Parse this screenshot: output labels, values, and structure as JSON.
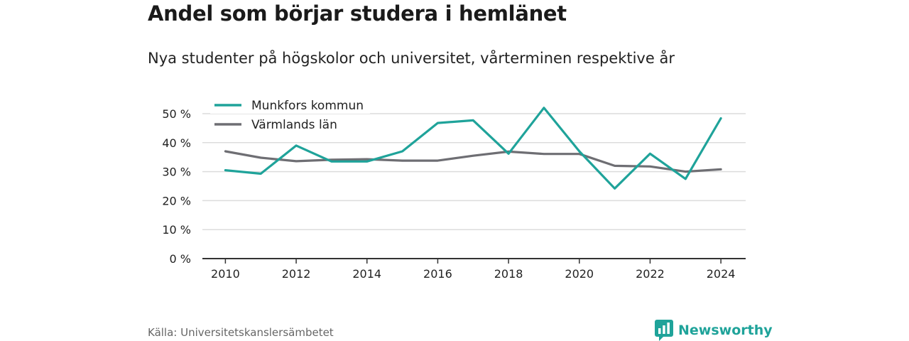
{
  "title": "Andel som börjar studera i hemlänet",
  "subtitle": "Nya studenter på högskolor och universitet, vårterminen respektive år",
  "source": "Källa: Universitetskanslersämbetet",
  "brand": {
    "name": "Newsworthy",
    "icon": "bar-chart-icon",
    "color": "#1fa39a"
  },
  "chart_data": {
    "type": "line",
    "x": [
      2010,
      2011,
      2012,
      2013,
      2014,
      2015,
      2016,
      2017,
      2018,
      2019,
      2020,
      2021,
      2022,
      2023,
      2024
    ],
    "series": [
      {
        "name": "Munkfors kommun",
        "color": "#1fa39a",
        "values": [
          30.5,
          29.3,
          39,
          33.5,
          33.5,
          37,
          46.8,
          47.7,
          36.2,
          52,
          37,
          24.2,
          36.2,
          27.5,
          48.4
        ]
      },
      {
        "name": "Värmlands län",
        "color": "#6e6e73",
        "values": [
          37,
          34.8,
          33.6,
          34.1,
          34.3,
          33.8,
          33.8,
          35.5,
          36.9,
          36.1,
          36.1,
          32,
          31.8,
          30,
          30.8
        ]
      }
    ],
    "yticks": [
      0,
      10,
      20,
      30,
      40,
      50
    ],
    "ytick_labels": [
      "0 %",
      "10 %",
      "20 %",
      "30 %",
      "40 %",
      "50 %"
    ],
    "xticks": [
      2010,
      2012,
      2014,
      2016,
      2018,
      2020,
      2022,
      2024
    ],
    "xtick_labels": [
      "2010",
      "2012",
      "2014",
      "2016",
      "2018",
      "2020",
      "2022",
      "2024"
    ],
    "ylim": [
      0,
      50
    ],
    "xlim": [
      2009.35,
      2024.7
    ],
    "grid": true,
    "legend": "top-left"
  }
}
